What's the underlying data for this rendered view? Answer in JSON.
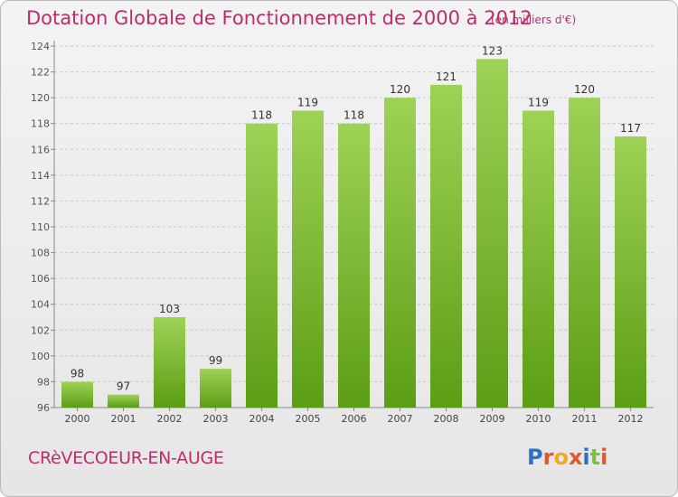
{
  "title": "Dotation Globale de Fonctionnement de 2000 à 2012",
  "unit_note": "(en milliers d'€)",
  "commune": "CRèVECOEUR-EN-AUGE",
  "logo": {
    "text": "Proxiti",
    "letter_colors": [
      "#2e6fc9",
      "#e0582b",
      "#f2a81d",
      "#e0582b",
      "#2e6fc9",
      "#7ac143",
      "#e0582b"
    ]
  },
  "colors": {
    "title": "#bc2d6a",
    "bar_top": "#9ed255",
    "bar_bottom": "#5c9d16",
    "grid": "#c8c8c8"
  },
  "chart_data": {
    "type": "bar",
    "title": "Dotation Globale de Fonctionnement de 2000 à 2012",
    "subtitle": "(en milliers d'€)",
    "xlabel": "",
    "ylabel": "",
    "categories": [
      "2000",
      "2001",
      "2002",
      "2003",
      "2004",
      "2005",
      "2006",
      "2007",
      "2008",
      "2009",
      "2010",
      "2011",
      "2012"
    ],
    "values": [
      98,
      97,
      103,
      99,
      118,
      119,
      118,
      120,
      121,
      123,
      119,
      120,
      117
    ],
    "ylim": [
      96,
      124
    ],
    "yticks": [
      96,
      98,
      100,
      102,
      104,
      106,
      108,
      110,
      112,
      114,
      116,
      118,
      120,
      122,
      124
    ],
    "grid": "horizontal dashed",
    "legend": "none"
  }
}
